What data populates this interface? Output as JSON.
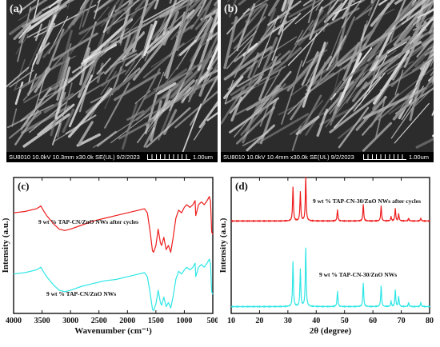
{
  "panels": {
    "a": {
      "label": "(a)",
      "info": "SU8010 10.0kV 10.3mm x30.0k SE(UL) 9/2/2023",
      "scale": "1.00um"
    },
    "b": {
      "label": "(b)",
      "info": "SU8010 10.0kV 10.4mm x30.0k SE(UL) 9/2/2023",
      "scale": "1.00um"
    }
  },
  "chart_data": [
    {
      "panel_label": "(c)",
      "type": "line",
      "xlabel": "Wavenumber (cm⁻¹)",
      "ylabel": "Intensity (a.u.)",
      "xlim": [
        4000,
        500
      ],
      "xticks": [
        4000,
        3500,
        3000,
        2500,
        2000,
        1500,
        1000,
        500
      ],
      "series": [
        {
          "name": "9 wt % TAP-CN/ZnO NWs after cycles",
          "color": "#ee1c1c",
          "x": [
            4000,
            3800,
            3600,
            3520,
            3480,
            3420,
            3300,
            3200,
            3100,
            3000,
            2800,
            2600,
            2400,
            2200,
            2000,
            1800,
            1700,
            1650,
            1600,
            1560,
            1540,
            1500,
            1460,
            1420,
            1400,
            1360,
            1320,
            1280,
            1240,
            1200,
            1150,
            1100,
            1050,
            1000,
            960,
            900,
            850,
            810,
            800,
            750,
            700,
            650,
            600,
            560,
            540,
            520,
            500
          ],
          "y": [
            0.74,
            0.75,
            0.77,
            0.79,
            0.76,
            0.72,
            0.66,
            0.62,
            0.61,
            0.62,
            0.65,
            0.68,
            0.7,
            0.72,
            0.74,
            0.76,
            0.77,
            0.74,
            0.6,
            0.46,
            0.45,
            0.5,
            0.62,
            0.52,
            0.5,
            0.56,
            0.47,
            0.5,
            0.45,
            0.55,
            0.7,
            0.76,
            0.74,
            0.78,
            0.8,
            0.78,
            0.8,
            0.83,
            0.72,
            0.8,
            0.82,
            0.8,
            0.83,
            0.86,
            0.82,
            0.6,
            0.58
          ]
        },
        {
          "name": "9 wt % TAP-CN/ZnO NWs",
          "color": "#2ee6e6",
          "x": [
            4000,
            3800,
            3600,
            3520,
            3480,
            3420,
            3300,
            3200,
            3100,
            3000,
            2800,
            2600,
            2400,
            2200,
            2000,
            1800,
            1700,
            1650,
            1600,
            1560,
            1540,
            1500,
            1460,
            1420,
            1400,
            1360,
            1320,
            1280,
            1240,
            1200,
            1150,
            1100,
            1050,
            1000,
            960,
            900,
            850,
            810,
            800,
            750,
            700,
            650,
            600,
            560,
            540,
            520,
            500
          ],
          "y": [
            0.29,
            0.3,
            0.32,
            0.34,
            0.31,
            0.27,
            0.21,
            0.17,
            0.16,
            0.17,
            0.2,
            0.22,
            0.24,
            0.25,
            0.27,
            0.29,
            0.3,
            0.27,
            0.15,
            0.03,
            0.02,
            0.07,
            0.17,
            0.08,
            0.06,
            0.12,
            0.05,
            0.08,
            0.04,
            0.12,
            0.25,
            0.31,
            0.29,
            0.32,
            0.34,
            0.32,
            0.34,
            0.37,
            0.27,
            0.34,
            0.36,
            0.34,
            0.37,
            0.4,
            0.36,
            0.16,
            0.14
          ]
        }
      ]
    },
    {
      "panel_label": "(d)",
      "type": "line",
      "xlabel": "2θ (degree)",
      "ylabel": "Intensity (a.u.)",
      "xlim": [
        10,
        80
      ],
      "xticks": [
        10,
        20,
        30,
        40,
        50,
        60,
        70,
        80
      ],
      "series": [
        {
          "name": "9 wt % TAP-CN-30/ZnO NWs after cycles",
          "color": "#ee1c1c",
          "baseline": 0.68,
          "peaks": [
            [
              31.8,
              0.25
            ],
            [
              34.4,
              0.21
            ],
            [
              36.3,
              0.32
            ],
            [
              47.5,
              0.08
            ],
            [
              56.6,
              0.12
            ],
            [
              62.9,
              0.11
            ],
            [
              66.4,
              0.03
            ],
            [
              67.9,
              0.09
            ],
            [
              69.1,
              0.05
            ],
            [
              72.6,
              0.02
            ],
            [
              76.9,
              0.02
            ]
          ]
        },
        {
          "name": "9 wt % TAP-CN-30/ZnO NWs",
          "color": "#2ee6e6",
          "baseline": 0.05,
          "peaks": [
            [
              31.8,
              0.33
            ],
            [
              34.4,
              0.27
            ],
            [
              36.3,
              0.43
            ],
            [
              47.5,
              0.11
            ],
            [
              56.6,
              0.17
            ],
            [
              62.9,
              0.15
            ],
            [
              66.4,
              0.04
            ],
            [
              67.9,
              0.12
            ],
            [
              69.1,
              0.07
            ],
            [
              72.6,
              0.03
            ],
            [
              76.9,
              0.03
            ]
          ]
        }
      ]
    }
  ]
}
